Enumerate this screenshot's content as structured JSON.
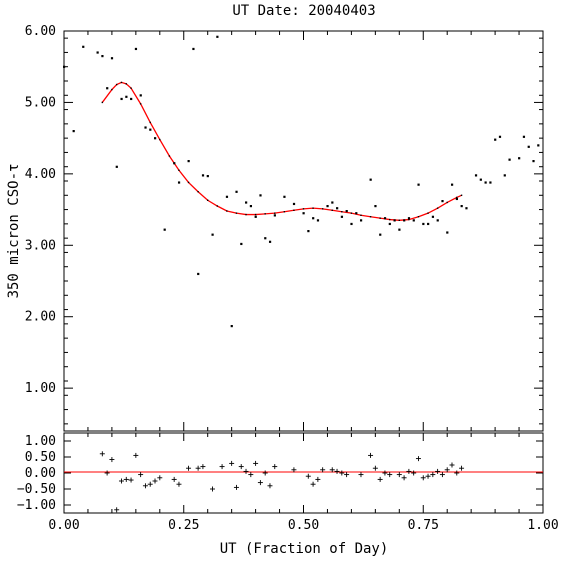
{
  "chart_data": [
    {
      "type": "scatter",
      "title": "UT Date: 20040403",
      "xlabel": "UT (Fraction of Day)",
      "ylabel": "350 micron CSO-τ",
      "xlim": [
        0.0,
        1.0
      ],
      "ylim": [
        0.4,
        6.0
      ],
      "x_ticks": [
        "0.00",
        "0.25",
        "0.50",
        "0.75",
        "1.00"
      ],
      "y_ticks": [
        "1.00",
        "2.00",
        "3.00",
        "4.00",
        "5.00",
        "6.00"
      ],
      "grid": false,
      "series": [
        {
          "marker": "dot",
          "color": "#000000",
          "x": [
            0.0,
            0.02,
            0.04,
            0.07,
            0.08,
            0.09,
            0.1,
            0.11,
            0.12,
            0.13,
            0.14,
            0.15,
            0.16,
            0.17,
            0.18,
            0.19,
            0.21,
            0.23,
            0.24,
            0.26,
            0.27,
            0.28,
            0.29,
            0.3,
            0.31,
            0.32,
            0.34,
            0.35,
            0.36,
            0.37,
            0.38,
            0.39,
            0.4,
            0.41,
            0.42,
            0.43,
            0.44,
            0.46,
            0.48,
            0.5,
            0.51,
            0.52,
            0.53,
            0.55,
            0.56,
            0.57,
            0.58,
            0.59,
            0.6,
            0.61,
            0.62,
            0.64,
            0.65,
            0.66,
            0.67,
            0.68,
            0.69,
            0.7,
            0.71,
            0.72,
            0.73,
            0.74,
            0.75,
            0.76,
            0.77,
            0.78,
            0.79,
            0.8,
            0.81,
            0.82,
            0.83,
            0.84,
            0.86,
            0.87,
            0.88,
            0.89,
            0.9,
            0.91,
            0.92,
            0.93,
            0.95,
            0.96,
            0.97,
            0.98,
            0.99
          ],
          "y": [
            5.5,
            4.6,
            5.78,
            5.7,
            5.65,
            5.2,
            5.62,
            4.1,
            5.05,
            5.08,
            5.05,
            5.75,
            5.1,
            4.65,
            4.62,
            4.5,
            3.22,
            4.15,
            3.88,
            4.18,
            5.75,
            2.6,
            3.98,
            3.97,
            3.15,
            5.92,
            3.68,
            1.87,
            3.75,
            3.02,
            3.6,
            3.55,
            3.4,
            3.7,
            3.1,
            3.05,
            3.42,
            3.68,
            3.58,
            3.45,
            3.2,
            3.38,
            3.35,
            3.55,
            3.6,
            3.52,
            3.4,
            3.48,
            3.3,
            3.45,
            3.35,
            3.92,
            3.55,
            3.15,
            3.38,
            3.3,
            3.35,
            3.22,
            3.35,
            3.38,
            3.35,
            3.85,
            3.3,
            3.3,
            3.4,
            3.35,
            3.62,
            3.18,
            3.85,
            3.65,
            3.55,
            3.52,
            3.98,
            3.92,
            3.88,
            3.88,
            4.48,
            4.52,
            3.98,
            4.2,
            4.22,
            4.52,
            4.38,
            4.18,
            4.4
          ]
        },
        {
          "name": "fit",
          "marker": "line",
          "color": "#ff0000",
          "x": [
            0.08,
            0.1,
            0.11,
            0.12,
            0.13,
            0.14,
            0.16,
            0.18,
            0.2,
            0.22,
            0.24,
            0.26,
            0.28,
            0.3,
            0.32,
            0.34,
            0.36,
            0.38,
            0.4,
            0.42,
            0.44,
            0.46,
            0.48,
            0.5,
            0.52,
            0.54,
            0.56,
            0.58,
            0.6,
            0.62,
            0.64,
            0.66,
            0.68,
            0.7,
            0.72,
            0.74,
            0.76,
            0.78,
            0.8,
            0.82,
            0.83
          ],
          "y": [
            5.0,
            5.18,
            5.25,
            5.28,
            5.26,
            5.2,
            4.98,
            4.72,
            4.48,
            4.25,
            4.05,
            3.88,
            3.75,
            3.63,
            3.55,
            3.48,
            3.45,
            3.43,
            3.43,
            3.44,
            3.45,
            3.47,
            3.49,
            3.51,
            3.52,
            3.51,
            3.49,
            3.47,
            3.45,
            3.42,
            3.4,
            3.38,
            3.36,
            3.35,
            3.36,
            3.4,
            3.45,
            3.52,
            3.6,
            3.67,
            3.7
          ]
        }
      ]
    },
    {
      "type": "scatter",
      "xlim": [
        0.0,
        1.0
      ],
      "ylim": [
        -1.25,
        1.25
      ],
      "x_ticks": [
        "0.00",
        "0.25",
        "0.50",
        "0.75",
        "1.00"
      ],
      "y_ticks": [
        "1.00",
        "0.50",
        "0.00",
        "−0.50",
        "−1.00"
      ],
      "grid": false,
      "zero_line_color": "#ff0000",
      "series": [
        {
          "marker": "plus",
          "color": "#000000",
          "x": [
            0.08,
            0.09,
            0.1,
            0.11,
            0.12,
            0.13,
            0.14,
            0.15,
            0.16,
            0.17,
            0.18,
            0.19,
            0.2,
            0.23,
            0.24,
            0.26,
            0.28,
            0.29,
            0.31,
            0.33,
            0.35,
            0.36,
            0.37,
            0.38,
            0.39,
            0.4,
            0.41,
            0.42,
            0.43,
            0.44,
            0.48,
            0.51,
            0.52,
            0.53,
            0.54,
            0.56,
            0.57,
            0.58,
            0.59,
            0.62,
            0.64,
            0.65,
            0.66,
            0.67,
            0.68,
            0.7,
            0.71,
            0.72,
            0.73,
            0.74,
            0.75,
            0.76,
            0.77,
            0.78,
            0.79,
            0.8,
            0.81,
            0.82,
            0.83
          ],
          "y": [
            0.6,
            0.0,
            0.42,
            -1.15,
            -0.25,
            -0.2,
            -0.22,
            0.55,
            -0.05,
            -0.4,
            -0.35,
            -0.25,
            -0.15,
            -0.2,
            -0.35,
            0.15,
            0.15,
            0.2,
            -0.5,
            0.2,
            0.3,
            -0.45,
            0.2,
            0.05,
            -0.05,
            0.3,
            -0.3,
            0.0,
            -0.4,
            0.2,
            0.1,
            -0.1,
            -0.35,
            -0.2,
            0.1,
            0.1,
            0.05,
            0.0,
            -0.05,
            -0.05,
            0.55,
            0.15,
            -0.2,
            0.0,
            -0.05,
            -0.05,
            -0.15,
            0.05,
            0.0,
            0.45,
            -0.15,
            -0.1,
            -0.05,
            0.05,
            -0.05,
            0.1,
            0.25,
            0.0,
            0.15
          ]
        }
      ]
    }
  ]
}
